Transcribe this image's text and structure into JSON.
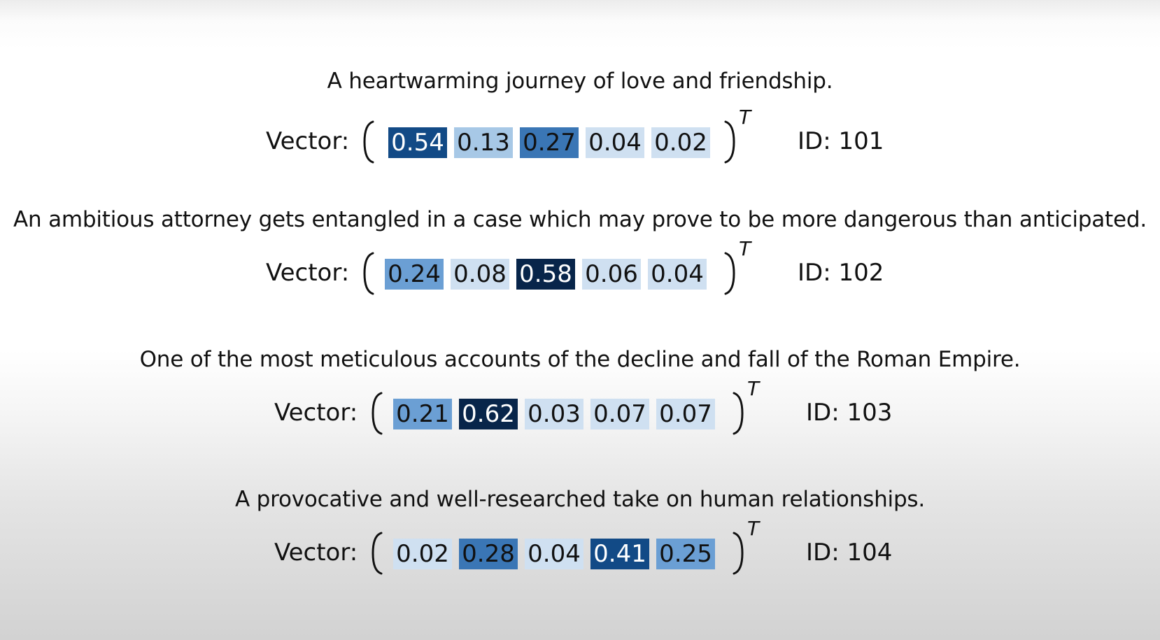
{
  "vector_label": "Vector:",
  "transpose_symbol": "T",
  "entries": [
    {
      "sentence": "A heartwarming journey of love and friendship.",
      "values": [
        "0.54",
        "0.13",
        "0.27",
        "0.04",
        "0.02"
      ],
      "id_label": "ID: 101"
    },
    {
      "sentence": "An ambitious attorney gets entangled in a case which may prove to be more dangerous than anticipated.",
      "values": [
        "0.24",
        "0.08",
        "0.58",
        "0.06",
        "0.04"
      ],
      "id_label": "ID: 102"
    },
    {
      "sentence": "One of the most meticulous accounts of the decline and fall of the Roman Empire.",
      "values": [
        "0.21",
        "0.62",
        "0.03",
        "0.07",
        "0.07"
      ],
      "id_label": "ID: 103"
    },
    {
      "sentence": "A provocative and well-researched take on human relationships.",
      "values": [
        "0.02",
        "0.28",
        "0.04",
        "0.41",
        "0.25"
      ],
      "id_label": "ID: 104"
    }
  ],
  "colors": {
    "dark_text": "#111111",
    "scale": [
      "#cfe0f1",
      "#a7c8e6",
      "#6b9fd4",
      "#3a76b5",
      "#124a86",
      "#08254a"
    ]
  }
}
